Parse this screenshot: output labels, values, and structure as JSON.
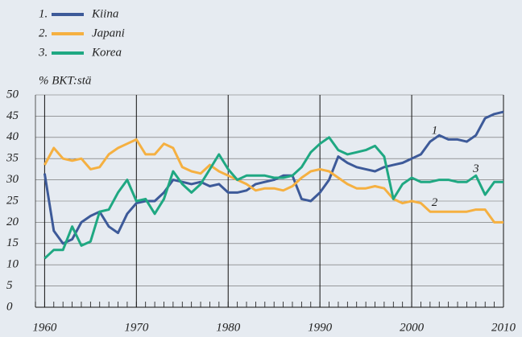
{
  "chart_data": {
    "type": "line",
    "y_label": "% BKT:stä",
    "x": [
      1960,
      1961,
      1962,
      1963,
      1964,
      1965,
      1966,
      1967,
      1968,
      1969,
      1970,
      1971,
      1972,
      1973,
      1974,
      1975,
      1976,
      1977,
      1978,
      1979,
      1980,
      1981,
      1982,
      1983,
      1984,
      1985,
      1986,
      1987,
      1988,
      1989,
      1990,
      1991,
      1992,
      1993,
      1994,
      1995,
      1996,
      1997,
      1998,
      1999,
      2000,
      2001,
      2002,
      2003,
      2004,
      2005,
      2006,
      2007,
      2008,
      2009,
      2010
    ],
    "series": [
      {
        "number": "1.",
        "name": "Kiina",
        "color": "#3d5a99",
        "values": [
          31.5,
          18,
          15,
          16,
          20,
          21.5,
          22.5,
          19,
          17.5,
          22,
          24.5,
          25,
          25,
          27,
          30,
          29.5,
          29,
          29.5,
          28.5,
          29,
          27,
          27,
          27.5,
          29,
          29.5,
          30,
          31,
          31,
          25.5,
          25,
          27,
          30,
          35.5,
          34,
          33,
          32.5,
          32,
          33,
          33.5,
          34,
          35,
          36,
          39,
          40.5,
          39.5,
          39.5,
          39,
          40.5,
          44.5,
          45.5,
          46
        ]
      },
      {
        "number": "2.",
        "name": "Japani",
        "color": "#f5b041",
        "values": [
          33.5,
          37.5,
          35,
          34.5,
          35,
          32.5,
          33,
          36,
          37.5,
          38.5,
          39.5,
          36,
          36,
          38.5,
          37.5,
          33,
          32,
          31.5,
          33.5,
          32,
          31,
          30,
          29,
          27.5,
          28,
          28,
          27.5,
          28.5,
          30.5,
          32,
          32.5,
          32,
          30.5,
          29,
          28,
          28,
          28.5,
          28,
          25.5,
          24.5,
          25,
          24.5,
          22.5,
          22.5,
          22.5,
          22.5,
          22.5,
          23,
          23,
          20,
          20
        ]
      },
      {
        "number": "3.",
        "name": "Korea",
        "color": "#1fa882",
        "values": [
          11.5,
          13.5,
          13.5,
          19,
          14.5,
          15.5,
          22.5,
          23,
          27,
          30,
          25,
          25.5,
          22,
          25.5,
          32,
          29,
          27,
          29,
          32.5,
          36,
          32.5,
          30,
          31,
          31,
          31,
          30.5,
          30.5,
          31,
          33,
          36.5,
          38.5,
          40,
          37,
          36,
          36.5,
          37,
          38,
          35.5,
          25.5,
          29,
          30.5,
          29.5,
          29.5,
          30,
          30,
          29.5,
          29.5,
          31,
          26.5,
          29.5,
          29.5
        ]
      }
    ],
    "annotations": [
      "1",
      "2",
      "3"
    ],
    "xlim": [
      1959,
      2010
    ],
    "xticks": [
      1960,
      1970,
      1980,
      1990,
      2000,
      2010
    ],
    "ylim": [
      0,
      50
    ],
    "yticks": [
      0,
      5,
      10,
      15,
      20,
      25,
      30,
      35,
      40,
      45,
      50
    ],
    "grid": true
  }
}
